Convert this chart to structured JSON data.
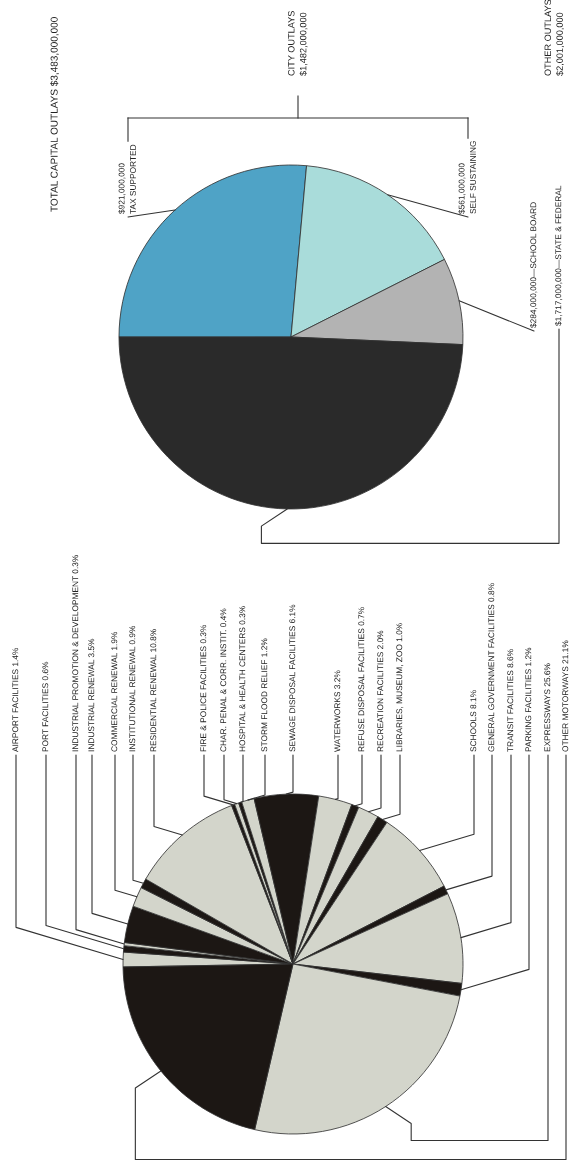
{
  "chart_data": [
    {
      "type": "pie",
      "categories": [
        "AIRPORT FACILITIES",
        "PORT FACILITIES",
        "INDUSTRIAL PROMOTION & DEVELOPMENT",
        "INDUSTRIAL RENEWAL",
        "COMMERCIAL RENEWAL",
        "INSTITUTIONAL RENEWAL",
        "RESIDENTIAL RENEWAL",
        "FIRE & POLICE FACILITIES",
        "CHAR. PENAL & CORR. INSTIT.",
        "HOSPITAL & HEALTH CENTERS",
        "STORM FLOOD RELIEF",
        "SEWAGE DISPOSAL FACILITIES",
        "WATERWORKS",
        "REFUSE DISPOSAL FACILITIES",
        "RECREATION FACILITIES",
        "LIBRARIES, MUSEUM, ZOO",
        "SCHOOLS",
        "GENERAL GOVERNMENT FACILITIES",
        "TRANSIT FACILITIES",
        "PARKING FACILITIES",
        "EXPRESSWAYS",
        "OTHER MOTORWAYS"
      ],
      "values": [
        1.4,
        0.6,
        0.3,
        3.5,
        1.9,
        0.9,
        10.8,
        0.3,
        0.4,
        0.3,
        1.2,
        6.1,
        3.2,
        0.7,
        2.0,
        1.0,
        8.1,
        0.8,
        8.6,
        1.2,
        25.6,
        21.1
      ],
      "value_labels": [
        "1.4%",
        "0.6%",
        "0.3%",
        "3.5%",
        "1.9%",
        "0.9%",
        "10.8%",
        "0.3%",
        "0.4%",
        "0.3%",
        "1.2%",
        "6.1%",
        "3.2%",
        "0.7%",
        "2.0%",
        "1.0%",
        "8.1%",
        "0.8%",
        "8.6%",
        "1.2%",
        "25.6%",
        "21.1%"
      ],
      "colors": [
        "#d3d5cb",
        "#1c1714",
        "#d3d5cb",
        "#1c1714",
        "#d3d5cb",
        "#1c1714",
        "#d3d5cb",
        "#1c1714",
        "#d3d5cb",
        "#1c1714",
        "#d3d5cb",
        "#1c1714",
        "#d3d5cb",
        "#1c1714",
        "#d3d5cb",
        "#1c1714",
        "#d3d5cb",
        "#1c1714",
        "#d3d5cb",
        "#1c1714",
        "#d3d5cb",
        "#1c1714"
      ]
    },
    {
      "type": "pie",
      "title": "TOTAL CAPITAL OUTLAYS $3,483,000,000",
      "categories": [
        "TAX SUPPORTED",
        "SELF SUSTAINING",
        "SCHOOL BOARD",
        "STATE & FEDERAL"
      ],
      "values": [
        921000000,
        561000000,
        284000000,
        1717000000
      ],
      "value_labels": [
        "$921,000,000",
        "$561,000,000",
        "$284,000,000—",
        "$1,717,000,000—"
      ],
      "colors": [
        "#4fa3c6",
        "#a9dcda",
        "#b3b3b3",
        "#2a2a2a"
      ],
      "annotations": [
        "CITY OUTLAYS\n$1,482,000,000",
        "OTHER OUTLAYS\n$2,001,000,000"
      ]
    }
  ]
}
